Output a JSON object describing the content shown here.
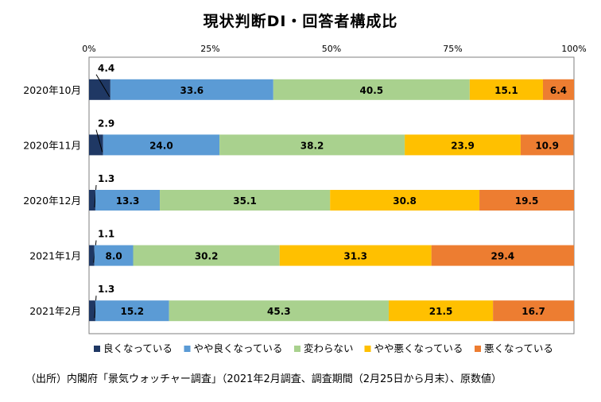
{
  "chart_data": {
    "type": "bar",
    "orientation": "horizontal",
    "stacked": "percent",
    "title": "現状判断DI・回答者構成比",
    "categories": [
      "2020年10月",
      "2020年11月",
      "2020年12月",
      "2021年1月",
      "2021年2月"
    ],
    "series": [
      {
        "name": "良くなっている",
        "color": "#1f3864",
        "values": [
          4.4,
          2.9,
          1.3,
          1.1,
          1.3
        ]
      },
      {
        "name": "やや良くなっている",
        "color": "#5b9bd5",
        "values": [
          33.6,
          24.0,
          13.3,
          8.0,
          15.2
        ]
      },
      {
        "name": "変わらない",
        "color": "#a9d18e",
        "values": [
          40.5,
          38.2,
          35.1,
          30.2,
          45.3
        ]
      },
      {
        "name": "やや悪くなっている",
        "color": "#ffc000",
        "values": [
          15.1,
          23.9,
          30.8,
          31.3,
          21.5
        ]
      },
      {
        "name": "悪くなっている",
        "color": "#ed7d31",
        "values": [
          6.4,
          10.9,
          19.5,
          29.4,
          16.7
        ]
      }
    ],
    "xlim": [
      0,
      100
    ],
    "xticks": [
      "0%",
      "25%",
      "50%",
      "75%",
      "100%"
    ],
    "grid": false,
    "legend": "bottom"
  },
  "source_note": "（出所）内閣府「景気ウォッチャー調査」（2021年2月調査、調査期間（2月25日から月末）、原数値）"
}
